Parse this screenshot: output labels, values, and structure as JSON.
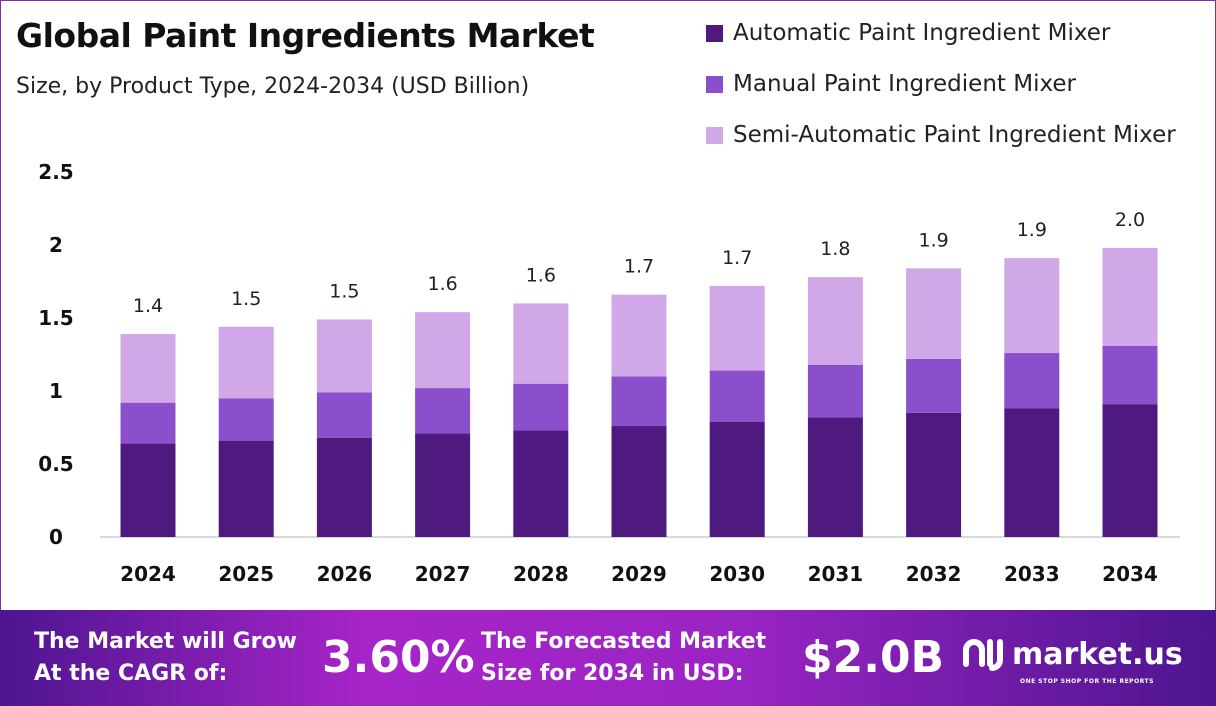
{
  "chart_data": {
    "type": "bar",
    "stacked": true,
    "title": "Global Paint Ingredients Market",
    "subtitle": "Size, by Product Type, 2024-2034 (USD Billion)",
    "categories": [
      "2024",
      "2025",
      "2026",
      "2027",
      "2028",
      "2029",
      "2030",
      "2031",
      "2032",
      "2033",
      "2034"
    ],
    "series": [
      {
        "name": "Automatic Paint Ingredient Mixer",
        "color": "#4e1a80",
        "values": [
          0.64,
          0.66,
          0.68,
          0.71,
          0.73,
          0.76,
          0.79,
          0.82,
          0.85,
          0.88,
          0.91
        ]
      },
      {
        "name": "Manual Paint Ingredient Mixer",
        "color": "#8b4fcb",
        "values": [
          0.28,
          0.29,
          0.31,
          0.31,
          0.32,
          0.34,
          0.35,
          0.36,
          0.37,
          0.38,
          0.4
        ]
      },
      {
        "name": "Semi-Automatic Paint Ingredient Mixer",
        "color": "#d0a8e8",
        "values": [
          0.47,
          0.49,
          0.5,
          0.52,
          0.55,
          0.56,
          0.58,
          0.6,
          0.62,
          0.65,
          0.67
        ]
      }
    ],
    "totals_labels": [
      "1.4",
      "1.5",
      "1.5",
      "1.6",
      "1.6",
      "1.7",
      "1.7",
      "1.8",
      "1.9",
      "1.9",
      "2.0"
    ],
    "yticks": [
      "0",
      "0.5",
      "1",
      "1.5",
      "2",
      "2.5"
    ],
    "ylim": [
      0,
      2.5
    ],
    "grid": false,
    "legend": "top-right"
  },
  "footer": {
    "cagr_text_1": "The Market will Grow",
    "cagr_text_2": "At the CAGR of:",
    "cagr_value": "3.60%",
    "forecast_text_1": "The Forecasted Market",
    "forecast_text_2": "Size for 2034 in USD:",
    "forecast_value": "$2.0B",
    "logo_text": "market.us",
    "logo_tagline": "ONE STOP SHOP FOR THE REPORTS"
  }
}
